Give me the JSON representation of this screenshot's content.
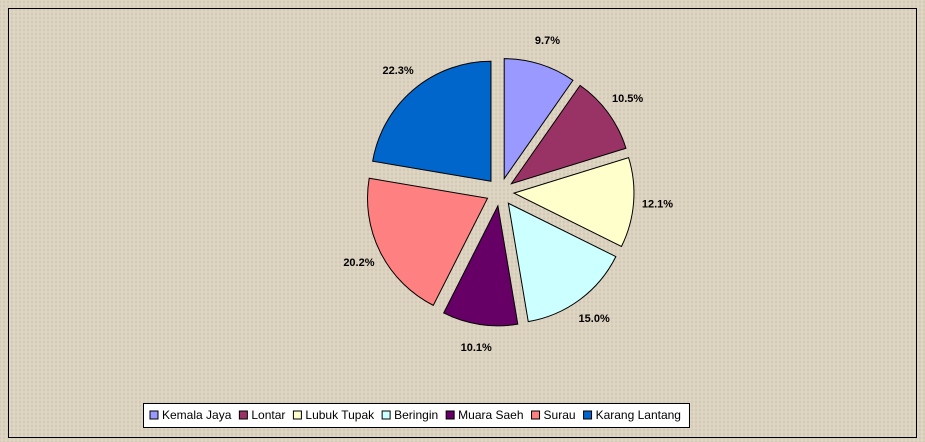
{
  "chart_data": {
    "type": "pie",
    "categories": [
      "Kemala Jaya",
      "Lontar",
      "Lubuk Tupak",
      "Beringin",
      "Muara Saeh",
      "Surau",
      "Karang Lantang"
    ],
    "values": [
      9.7,
      10.5,
      12.1,
      15.0,
      10.1,
      20.2,
      22.3
    ],
    "value_labels": [
      "9.7%",
      "10.5%",
      "12.1%",
      "15.0%",
      "10.1%",
      "20.2%",
      "22.3%"
    ],
    "colors": [
      "#9999ff",
      "#993366",
      "#ffffcc",
      "#ccffff",
      "#660066",
      "#ff8080",
      "#0066cc"
    ],
    "legend": "bottom"
  }
}
